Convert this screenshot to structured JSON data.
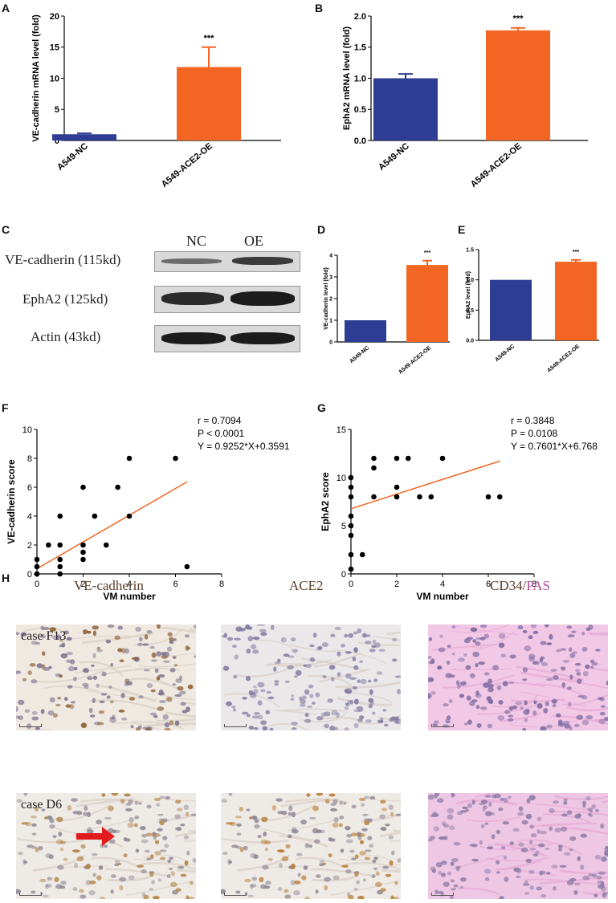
{
  "panels": {
    "A": "A",
    "B": "B",
    "C": "C",
    "D": "D",
    "E": "E",
    "F": "F",
    "G": "G",
    "H": "H"
  },
  "colors": {
    "nc": "#2e3d94",
    "oe": "#f26522",
    "fit": "#f26522",
    "vecadherin_title": "#5a3d2b",
    "ace2_title": "#5a3d2b",
    "pas": "#b04aa0"
  },
  "chart_data": [
    {
      "id": "A",
      "type": "bar",
      "categories": [
        "A549-NC",
        "A549-ACE2-OE"
      ],
      "values": [
        1.0,
        11.8
      ],
      "errors": [
        0.15,
        3.2
      ],
      "ylabel": "VE-cadherin mRNA level (fold)",
      "ylim": [
        0,
        20
      ],
      "yticks": [
        "0",
        "5",
        "10",
        "15",
        "20"
      ],
      "annotation": "***"
    },
    {
      "id": "B",
      "type": "bar",
      "categories": [
        "A549-NC",
        "A549-ACE2-OE"
      ],
      "values": [
        1.0,
        1.77
      ],
      "errors": [
        0.07,
        0.04
      ],
      "ylabel": "EphA2 mRNA level (fold)",
      "ylim": [
        0,
        2.0
      ],
      "yticks": [
        "0.0",
        "0.5",
        "1.0",
        "1.5",
        "2.0"
      ],
      "annotation": "***"
    },
    {
      "id": "D",
      "type": "bar",
      "categories": [
        "A549-NC",
        "A549-ACE2-OE"
      ],
      "values": [
        1.0,
        3.55
      ],
      "errors": [
        0,
        0.2
      ],
      "ylabel": "VE-cadherin level (fold)",
      "ylim": [
        0,
        4
      ],
      "yticks": [
        "0",
        "1",
        "2",
        "3",
        "4"
      ],
      "annotation": "***"
    },
    {
      "id": "E",
      "type": "bar",
      "categories": [
        "A549-NC",
        "A549-ACE2-OE"
      ],
      "values": [
        1.0,
        1.3
      ],
      "errors": [
        0,
        0.03
      ],
      "ylabel": "EphA2 level (fold)",
      "ylim": [
        0,
        1.5
      ],
      "yticks": [
        "0.0",
        "0.5",
        "1.0",
        "1.5"
      ],
      "annotation": "***"
    },
    {
      "id": "F",
      "type": "scatter",
      "xlabel": "VM number",
      "ylabel": "VE-cadherin score",
      "xlim": [
        0,
        8
      ],
      "ylim": [
        0,
        10
      ],
      "xticks": [
        "0",
        "2",
        "4",
        "6",
        "8"
      ],
      "yticks": [
        "0",
        "2",
        "4",
        "6",
        "8",
        "10"
      ],
      "points": [
        [
          0,
          0
        ],
        [
          0,
          0.5
        ],
        [
          0,
          1
        ],
        [
          0.5,
          2
        ],
        [
          1,
          0
        ],
        [
          1,
          0.5
        ],
        [
          1,
          1
        ],
        [
          1,
          2
        ],
        [
          1,
          4
        ],
        [
          2,
          1
        ],
        [
          2,
          1.5
        ],
        [
          2,
          2
        ],
        [
          2,
          6
        ],
        [
          2.5,
          4
        ],
        [
          3,
          2
        ],
        [
          3.5,
          6
        ],
        [
          4,
          4
        ],
        [
          4,
          8
        ],
        [
          6,
          8
        ],
        [
          6.5,
          0.5
        ]
      ],
      "fit": {
        "slope": 0.9252,
        "intercept": 0.3591,
        "x_range": [
          0,
          6.5
        ]
      },
      "stats": [
        "r = 0.7094",
        "P < 0.0001",
        "Y = 0.9252*X+0.3591"
      ]
    },
    {
      "id": "G",
      "type": "scatter",
      "xlabel": "VM number",
      "ylabel": "EphA2 score",
      "xlim": [
        0,
        8
      ],
      "ylim": [
        0,
        15
      ],
      "xticks": [
        "0",
        "2",
        "4",
        "6",
        "8"
      ],
      "yticks": [
        "0",
        "5",
        "10",
        "15"
      ],
      "points": [
        [
          0,
          0.5
        ],
        [
          0,
          2
        ],
        [
          0,
          4
        ],
        [
          0,
          5
        ],
        [
          0,
          6
        ],
        [
          0,
          8
        ],
        [
          0,
          9
        ],
        [
          0,
          10
        ],
        [
          0.5,
          2
        ],
        [
          1,
          8
        ],
        [
          1,
          11
        ],
        [
          1,
          12
        ],
        [
          2,
          8
        ],
        [
          2,
          9
        ],
        [
          2,
          12
        ],
        [
          2.5,
          12
        ],
        [
          3,
          8
        ],
        [
          3.5,
          8
        ],
        [
          4,
          12
        ],
        [
          6,
          8
        ],
        [
          6.5,
          8
        ]
      ],
      "fit": {
        "slope": 0.7601,
        "intercept": 6.768,
        "x_range": [
          0,
          6.5
        ]
      },
      "stats": [
        "r = 0.3848",
        "P = 0.0108",
        "Y = 0.7601*X+6.768"
      ]
    }
  ],
  "western": {
    "header_nc": "NC",
    "header_oe": "OE",
    "rows": [
      "VE-cadherin (115kd)",
      "EphA2 (125kd)",
      "Actin (43kd)"
    ]
  },
  "ihc": {
    "col1": "VE-cadherin",
    "col2": "ACE2",
    "col3_part1": "CD34/",
    "col3_part2": "PAS",
    "case1": "case F13",
    "case2": "case D6"
  }
}
